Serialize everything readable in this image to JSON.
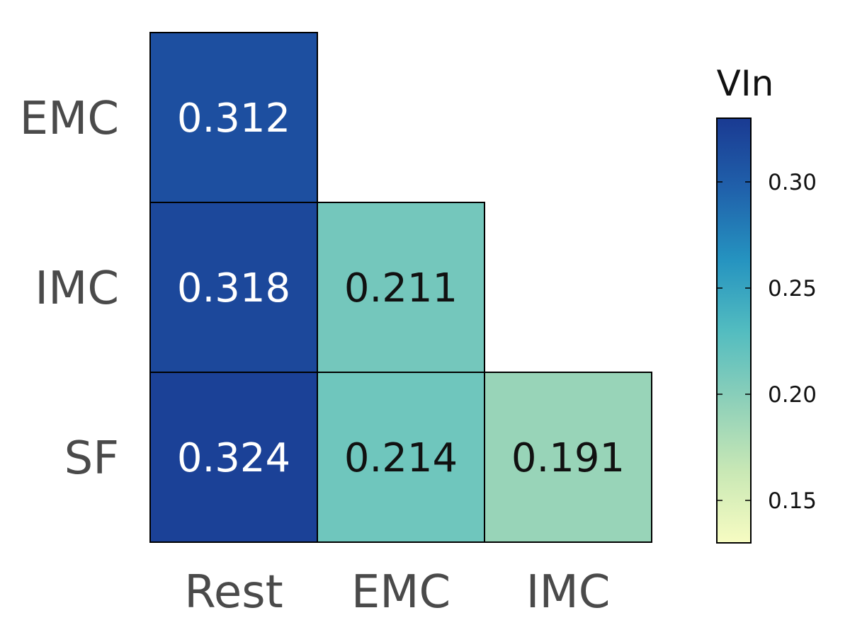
{
  "chart_data": {
    "type": "heatmap",
    "rows": [
      "EMC",
      "IMC",
      "SF"
    ],
    "columns": [
      "Rest",
      "EMC",
      "IMC"
    ],
    "cells": [
      {
        "row": "EMC",
        "col": "Rest",
        "value": 0.312,
        "label": "0.312"
      },
      {
        "row": "IMC",
        "col": "Rest",
        "value": 0.318,
        "label": "0.318"
      },
      {
        "row": "IMC",
        "col": "EMC",
        "value": 0.211,
        "label": "0.211"
      },
      {
        "row": "SF",
        "col": "Rest",
        "value": 0.324,
        "label": "0.324"
      },
      {
        "row": "SF",
        "col": "EMC",
        "value": 0.214,
        "label": "0.214"
      },
      {
        "row": "SF",
        "col": "IMC",
        "value": 0.191,
        "label": "0.191"
      }
    ],
    "colorbar": {
      "title": "VIn",
      "range": [
        0.13,
        0.33
      ],
      "ticks": [
        0.15,
        0.2,
        0.25,
        0.3
      ],
      "tick_labels": [
        "0.15",
        "0.20",
        "0.25",
        "0.30"
      ],
      "colormap": "YlGnBu",
      "colors": [
        "#f7fcc2",
        "#c9e8b5",
        "#8ed0b9",
        "#52bcc0",
        "#2593c0",
        "#2061ab",
        "#1a3a92"
      ]
    }
  }
}
